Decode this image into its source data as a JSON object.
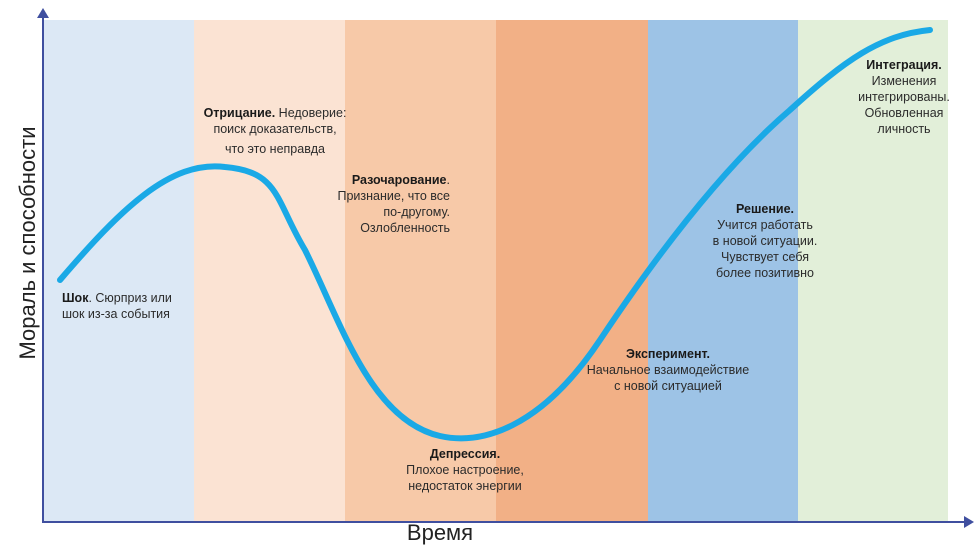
{
  "axes": {
    "y_label": "Мораль и способности",
    "x_label": "Время",
    "color": "#3f4f9f"
  },
  "curve": {
    "color": "#1aa9e6"
  },
  "bands": [
    {
      "id": "shock",
      "color": "#dce8f5"
    },
    {
      "id": "denial",
      "color": "#fbe3d3"
    },
    {
      "id": "disappointment",
      "color": "#f7c9a8"
    },
    {
      "id": "depression",
      "color": "#f2b086"
    },
    {
      "id": "solution",
      "color": "#9dc3e6"
    },
    {
      "id": "integration",
      "color": "#e2efd9"
    }
  ],
  "stages": {
    "shock": {
      "title": "Шок",
      "text_1": ". Сюрприз или",
      "text_2": "шок из-за события"
    },
    "denial": {
      "title": "Отрицание.",
      "text_1": " Недоверие:",
      "text_2": "поиск доказательств,",
      "text_3": "что это неправда"
    },
    "disappointment": {
      "title": "Разочарование",
      "text_1": ".",
      "text_2": "Признание, что все",
      "text_3": "по-другому.",
      "text_4": "Озлобленность"
    },
    "depression": {
      "title": "Депрессия.",
      "text_1": "Плохое настроение,",
      "text_2": "недостаток энергии"
    },
    "experiment": {
      "title": "Эксперимент.",
      "text_1": "Начальное взаимодействие",
      "text_2": "с новой ситуацией"
    },
    "solution": {
      "title": "Решение.",
      "text_1": "Учится работать",
      "text_2": "в новой ситуации.",
      "text_3": "Чувствует себя",
      "text_4": "более позитивно"
    },
    "integration": {
      "title": "Интеграция.",
      "text_1": "Изменения",
      "text_2": "интегрированы.",
      "text_3": "Обновленная",
      "text_4": "личность"
    }
  }
}
